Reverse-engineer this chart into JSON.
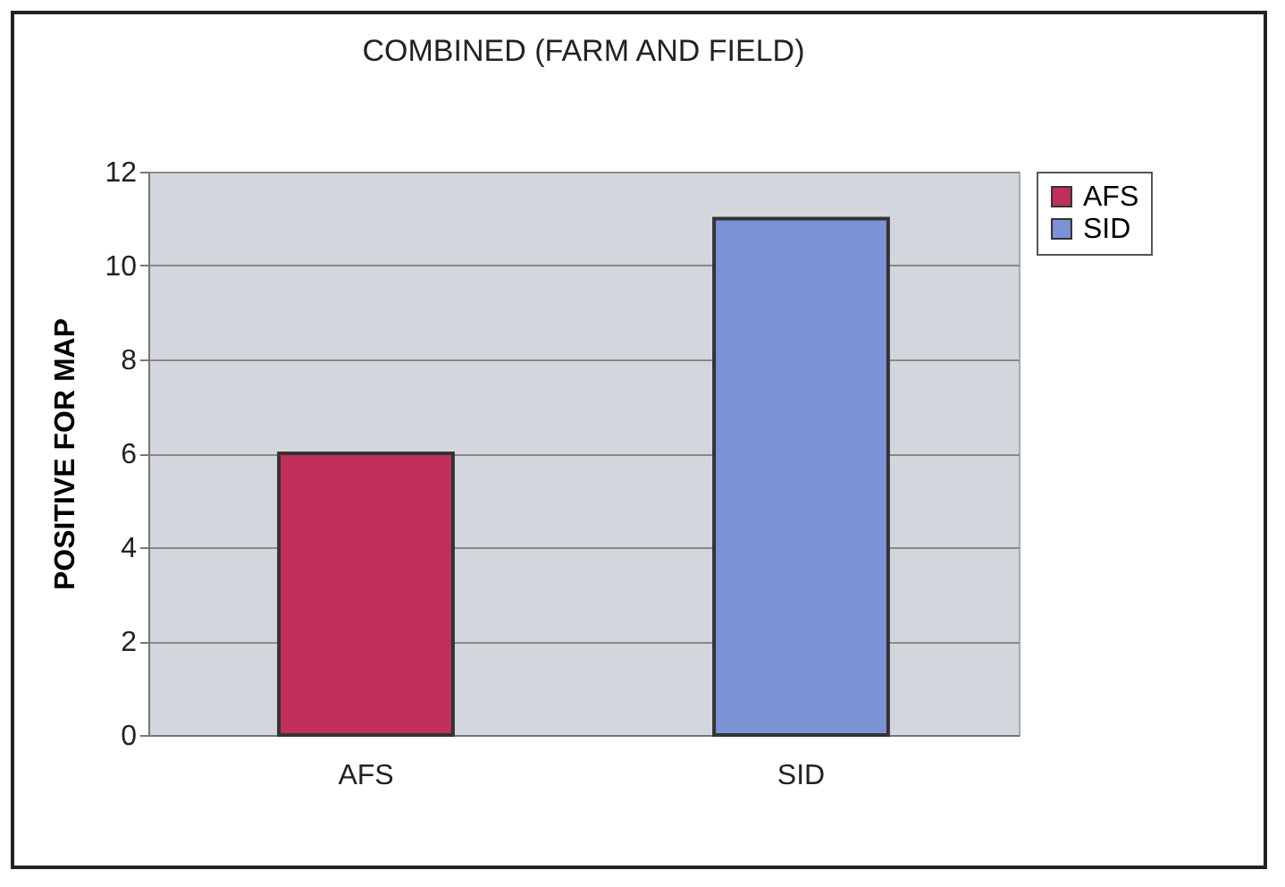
{
  "chart_data": {
    "type": "bar",
    "title": "COMBINED (FARM AND FIELD)",
    "ylabel": "POSITIVE FOR MAP",
    "categories": [
      "AFS",
      "SID"
    ],
    "series": [
      {
        "name": "AFS",
        "color": "#c0305a",
        "values": [
          6,
          null
        ]
      },
      {
        "name": "SID",
        "color": "#7b93d6",
        "values": [
          null,
          11
        ]
      }
    ],
    "ylim": [
      0,
      12
    ],
    "yticks": [
      0,
      2,
      4,
      6,
      8,
      10,
      12
    ],
    "grid": "y",
    "legend": "right"
  }
}
